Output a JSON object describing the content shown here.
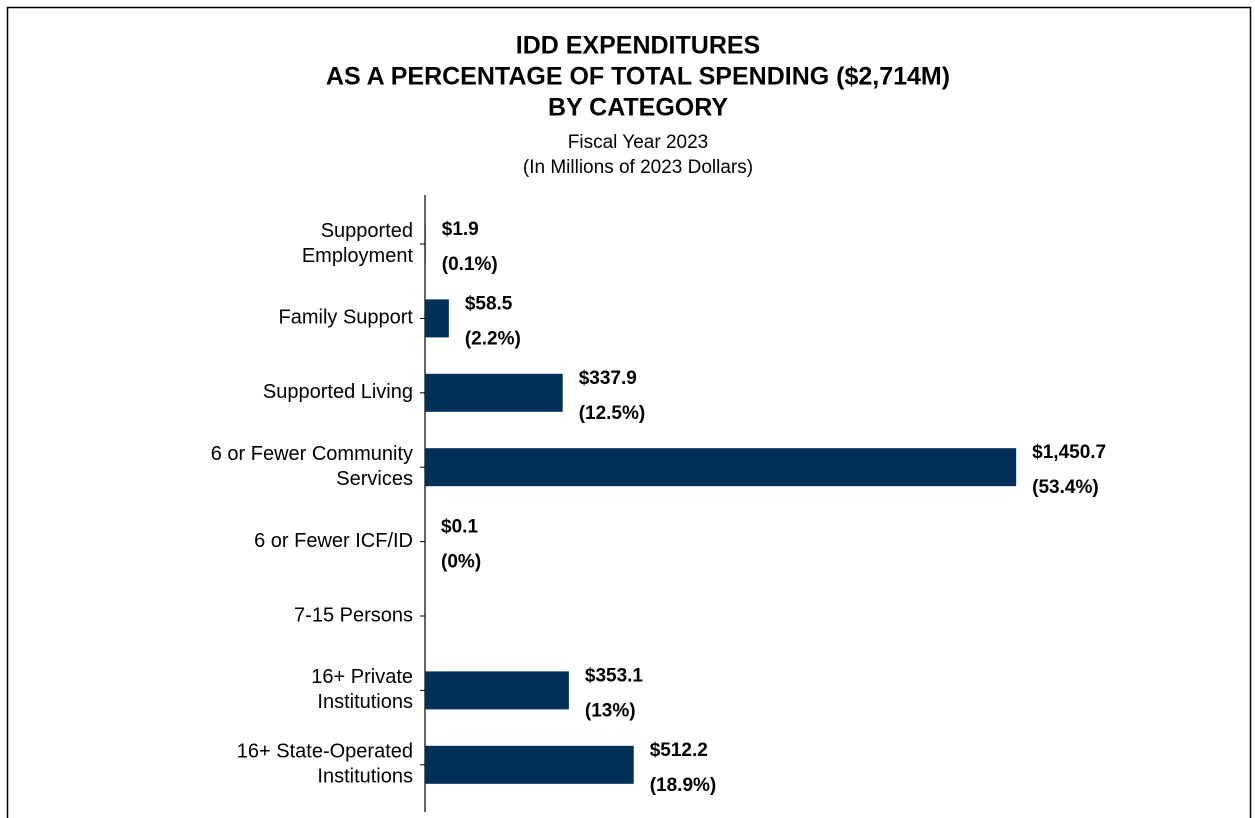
{
  "chart_data": {
    "type": "barh",
    "title": [
      "IDD EXPENDITURES",
      "AS A PERCENTAGE OF TOTAL SPENDING ($2,714M)",
      "BY CATEGORY"
    ],
    "subtitle": [
      "Fiscal Year 2023",
      "(In Millions of 2023 Dollars)"
    ],
    "categories": [
      [
        "Supported",
        "Employment"
      ],
      [
        "Family Support"
      ],
      [
        "Supported Living"
      ],
      [
        "6 or Fewer Community",
        "Services"
      ],
      [
        "6 or Fewer ICF/ID"
      ],
      [
        "7-15 Persons"
      ],
      [
        "16+ Private",
        "Institutions"
      ],
      [
        "16+ State-Operated",
        "Institutions"
      ]
    ],
    "values": [
      1.9,
      58.5,
      337.9,
      1450.7,
      0.1,
      null,
      353.1,
      512.2
    ],
    "value_labels": [
      [
        "$1.9",
        "(0.1%)"
      ],
      [
        "$58.5",
        "(2.2%)"
      ],
      [
        "$337.9",
        "(12.5%)"
      ],
      [
        "$1,450.7",
        "(53.4%)"
      ],
      [
        "$0.1",
        "(0%)"
      ],
      null,
      [
        "$353.1",
        "(13%)"
      ],
      [
        "$512.2",
        "(18.9%)"
      ]
    ],
    "color": "#003057",
    "xlim": [
      0,
      2000
    ]
  }
}
